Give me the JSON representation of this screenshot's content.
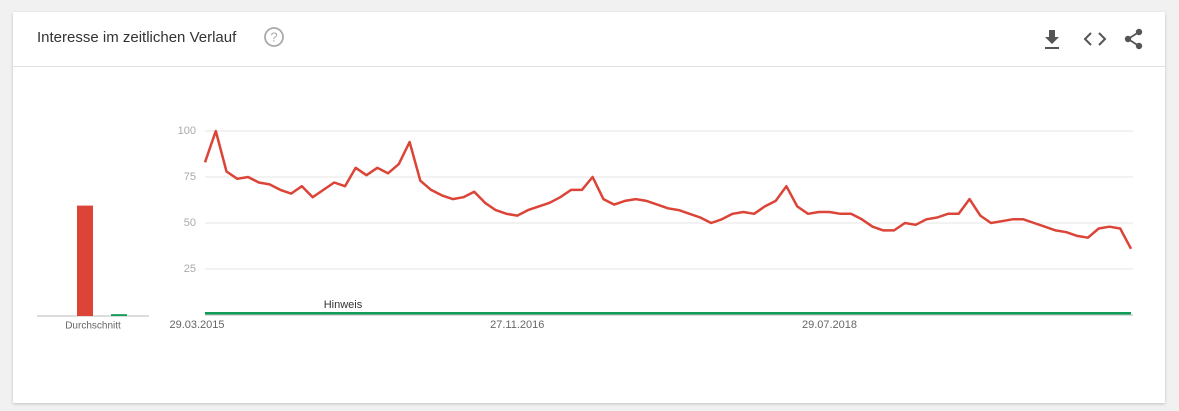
{
  "title": "Interesse im zeitlichen Verlauf",
  "chart_data": [
    {
      "type": "bar",
      "categories": [
        "Durchschnitt"
      ],
      "ylim": [
        0,
        100
      ],
      "series": [
        {
          "color": "#db4437",
          "values": [
            60
          ]
        },
        {
          "color": "#0f9d58",
          "values": [
            1
          ]
        }
      ]
    },
    {
      "type": "line",
      "ylim": [
        0,
        100
      ],
      "yticks": [
        25,
        50,
        75,
        100
      ],
      "grid": true,
      "annotation": "Hinweis",
      "categories": [
        "29.03.2015",
        null,
        null,
        null,
        null,
        null,
        null,
        null,
        null,
        null,
        null,
        null,
        null,
        null,
        null,
        null,
        null,
        null,
        null,
        null,
        null,
        null,
        null,
        null,
        null,
        null,
        null,
        null,
        null,
        "27.11.2016",
        null,
        null,
        null,
        null,
        null,
        null,
        null,
        null,
        null,
        null,
        null,
        null,
        null,
        null,
        null,
        null,
        null,
        null,
        null,
        null,
        null,
        null,
        null,
        null,
        null,
        null,
        null,
        null,
        "29.07.2018",
        null,
        null,
        null,
        null,
        null,
        null,
        null,
        null,
        null,
        null,
        null,
        null,
        null,
        null,
        null,
        null,
        null,
        null,
        null,
        null,
        null,
        null,
        null,
        null,
        null,
        null,
        null,
        null
      ],
      "series": [
        {
          "color": "#db4437",
          "values": [
            83,
            100,
            78,
            74,
            75,
            72,
            71,
            68,
            66,
            70,
            64,
            68,
            72,
            70,
            80,
            76,
            80,
            77,
            82,
            94,
            73,
            68,
            65,
            63,
            64,
            67,
            61,
            57,
            55,
            54,
            57,
            59,
            61,
            64,
            68,
            68,
            75,
            63,
            60,
            62,
            63,
            62,
            60,
            58,
            57,
            55,
            53,
            50,
            52,
            55,
            56,
            55,
            59,
            62,
            70,
            59,
            55,
            56,
            56,
            55,
            55,
            52,
            48,
            46,
            46,
            50,
            49,
            52,
            53,
            55,
            55,
            63,
            54,
            50,
            51,
            52,
            52,
            50,
            48,
            46,
            45,
            43,
            42,
            47,
            48,
            47,
            36
          ]
        },
        {
          "color": "#0f9d58",
          "values": [
            1,
            1,
            1,
            1,
            1,
            1,
            1,
            1,
            1,
            1,
            1,
            1,
            1,
            1,
            1,
            1,
            1,
            1,
            1,
            1,
            1,
            1,
            1,
            1,
            1,
            1,
            1,
            1,
            1,
            1,
            1,
            1,
            1,
            1,
            1,
            1,
            1,
            1,
            1,
            1,
            1,
            1,
            1,
            1,
            1,
            1,
            1,
            1,
            1,
            1,
            1,
            1,
            1,
            1,
            1,
            1,
            1,
            1,
            1,
            1,
            1,
            1,
            1,
            1,
            1,
            1,
            1,
            1,
            1,
            1,
            1,
            1,
            1,
            1,
            1,
            1,
            1,
            1,
            1,
            1,
            1,
            1,
            1,
            1,
            1,
            1,
            1
          ]
        }
      ]
    }
  ]
}
